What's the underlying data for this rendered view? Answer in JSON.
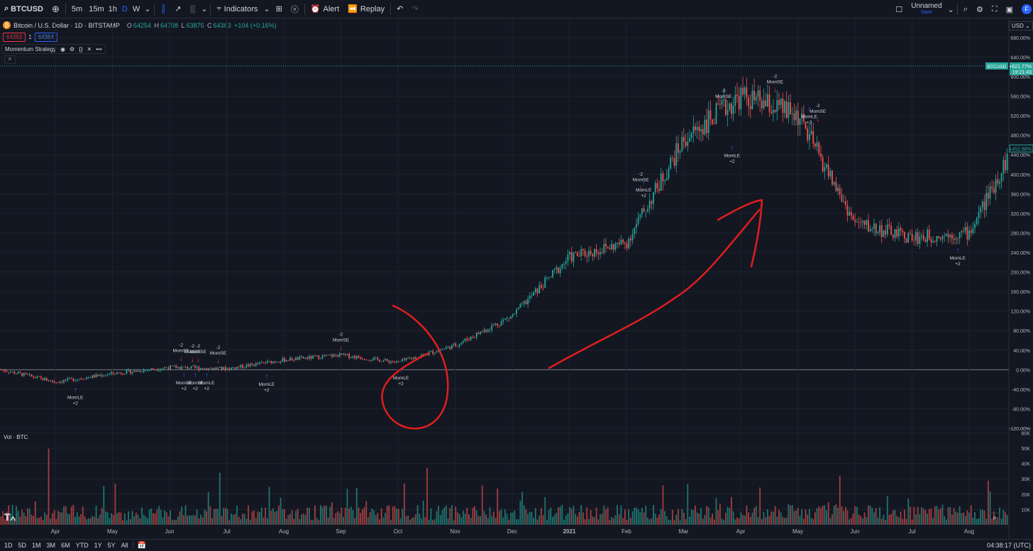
{
  "toolbar": {
    "symbol": "BTCUSD",
    "intervals": [
      "5m",
      "15m",
      "1h",
      "D",
      "W"
    ],
    "active_interval": "D",
    "indicators_label": "Indicators",
    "alert_label": "Alert",
    "replay_label": "Replay",
    "layout_name": "Unnamed",
    "save_label": "Save",
    "avatar_letter": "F"
  },
  "legend": {
    "title": "Bitcoin / U.S. Dollar · 1D · BITSTAMP",
    "o_label": "O",
    "o_value": "64254",
    "h_label": "H",
    "h_value": "64708",
    "l_label": "L",
    "l_value": "63875",
    "c_label": "C",
    "c_value": "64363",
    "change": "+104 (+0.16%)",
    "bid": "64363",
    "spread": "1",
    "ask": "64364",
    "strategy_name": "Momentum Strategy"
  },
  "currency": "USD",
  "volume_label": "Vol · BTC",
  "timeframes": [
    "1D",
    "5D",
    "1M",
    "3M",
    "6M",
    "YTD",
    "1Y",
    "5Y",
    "All"
  ],
  "clock": "04:38:17 (UTC)",
  "colors": {
    "up": "#26a69a",
    "down": "#ef5350",
    "long": "#2962ff",
    "short": "#f23645",
    "drawing": "#e01e1e"
  },
  "chart_data": {
    "type": "candlestick",
    "price_axis": {
      "scale": "percent",
      "ticks": [
        "680.00%",
        "640.00%",
        "600.00%",
        "560.00%",
        "520.00%",
        "480.00%",
        "440.00%",
        "400.00%",
        "360.00%",
        "320.00%",
        "280.00%",
        "240.00%",
        "200.00%",
        "160.00%",
        "120.00%",
        "80.00%",
        "40.00%",
        "0.00%",
        "-40.00%",
        "-80.00%",
        "-120.00%"
      ],
      "range": [
        -120,
        690
      ]
    },
    "last_price_tag": {
      "symbol": "BTCUSD",
      "value": "+621.77%",
      "countdown": "19:21:43"
    },
    "current_tag": "+452.88%",
    "series_percent_at_month_start": [
      {
        "month": "Apr",
        "value": -25
      },
      {
        "month": "May",
        "value": -8
      },
      {
        "month": "Jun",
        "value": 5
      },
      {
        "month": "Jul",
        "value": 2
      },
      {
        "month": "Aug",
        "value": 20
      },
      {
        "month": "Sep",
        "value": 30
      },
      {
        "month": "Oct",
        "value": 15
      },
      {
        "month": "Nov",
        "value": 50
      },
      {
        "month": "Dec",
        "value": 110
      },
      {
        "month": "2021",
        "value": 230
      },
      {
        "month": "Feb",
        "value": 260
      },
      {
        "month": "Mar",
        "value": 470
      },
      {
        "month": "Apr",
        "value": 560
      },
      {
        "month": "May",
        "value": 520
      },
      {
        "month": "Jun",
        "value": 300
      },
      {
        "month": "Jul",
        "value": 270
      },
      {
        "month": "Aug",
        "value": 280
      }
    ],
    "time_ticks": [
      "Apr",
      "May",
      "Jun",
      "Jul",
      "Aug",
      "Sep",
      "Oct",
      "Nov",
      "Dec",
      "2021",
      "Feb",
      "Mar",
      "Apr",
      "May",
      "Jun",
      "Jul",
      "Aug"
    ],
    "volume_axis": {
      "ticks": [
        "60K",
        "50K",
        "40K",
        "30K",
        "20K",
        "10K"
      ],
      "range": [
        0,
        62
      ]
    },
    "signals": [
      {
        "type": "long",
        "label": "MomLE",
        "qty": "+2",
        "month_index": 0.35,
        "value": -25
      },
      {
        "type": "short",
        "label": "MomSE",
        "qty": "-2",
        "month_index": 2.2,
        "value": 10
      },
      {
        "type": "long",
        "label": "MomLE",
        "qty": "+2",
        "month_index": 2.25,
        "value": 5
      },
      {
        "type": "short",
        "label": "MomSE",
        "qty": "-2",
        "month_index": 2.4,
        "value": 8
      },
      {
        "type": "short",
        "label": "MomSE",
        "qty": "-2",
        "month_index": 2.5,
        "value": 8
      },
      {
        "type": "long",
        "label": "MomLE",
        "qty": "+2",
        "month_index": 2.45,
        "value": 5
      },
      {
        "type": "long",
        "label": "MomLE",
        "qty": "+2",
        "month_index": 2.65,
        "value": 5
      },
      {
        "type": "short",
        "label": "MomSE",
        "qty": "-2",
        "month_index": 2.85,
        "value": 5
      },
      {
        "type": "long",
        "label": "MomLE",
        "qty": "+2",
        "month_index": 3.7,
        "value": 2
      },
      {
        "type": "short",
        "label": "MomSE",
        "qty": "-2",
        "month_index": 5.0,
        "value": 32
      },
      {
        "type": "long",
        "label": "MomLE",
        "qty": "+2",
        "month_index": 6.05,
        "value": 15
      },
      {
        "type": "short",
        "label": "MomSE",
        "qty": "-2",
        "month_index": 10.25,
        "value": 360
      },
      {
        "type": "long",
        "label": "MomLE",
        "qty": "+2",
        "month_index": 10.3,
        "value": 400
      },
      {
        "type": "short",
        "label": "MomSE",
        "qty": "-2",
        "month_index": 11.7,
        "value": 530
      },
      {
        "type": "long",
        "label": "MomLE",
        "qty": "+2",
        "month_index": 11.85,
        "value": 470
      },
      {
        "type": "short",
        "label": "MomSE",
        "qty": "-2",
        "month_index": 12.6,
        "value": 560
      },
      {
        "type": "long",
        "label": "MomLE",
        "qty": "+2",
        "month_index": 13.2,
        "value": 550
      },
      {
        "type": "short",
        "label": "MomSE",
        "qty": "-2",
        "month_index": 13.35,
        "value": 500
      },
      {
        "type": "long",
        "label": "MomLE",
        "qty": "+2",
        "month_index": 15.8,
        "value": 260
      }
    ]
  }
}
